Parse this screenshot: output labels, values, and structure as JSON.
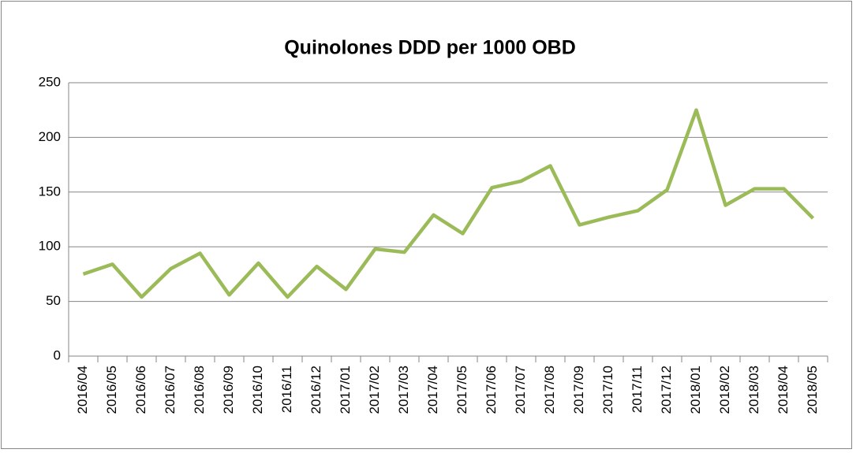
{
  "chart_data": {
    "type": "line",
    "title": "Quinolones DDD per 1000 OBD",
    "categories": [
      "2016/04",
      "2016/05",
      "2016/06",
      "2016/07",
      "2016/08",
      "2016/09",
      "2016/10",
      "2016/11",
      "2016/12",
      "2017/01",
      "2017/02",
      "2017/03",
      "2017/04",
      "2017/05",
      "2017/06",
      "2017/07",
      "2017/08",
      "2017/09",
      "2017/10",
      "2017/11",
      "2017/12",
      "2018/01",
      "2018/02",
      "2018/03",
      "2018/04",
      "2018/05"
    ],
    "values": [
      75,
      84,
      54,
      80,
      94,
      56,
      85,
      54,
      82,
      61,
      98,
      95,
      129,
      112,
      154,
      160,
      174,
      120,
      127,
      133,
      152,
      225,
      138,
      153,
      153,
      126
    ],
    "color": "#9bbb59",
    "ylim": [
      0,
      250
    ],
    "yticks": [
      0,
      50,
      100,
      150,
      200,
      250
    ],
    "grid": true
  }
}
